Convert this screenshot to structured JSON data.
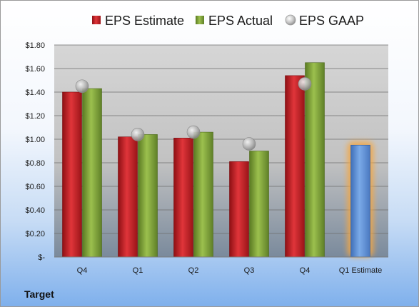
{
  "company": "Target",
  "colors": {
    "estimate": "#c81e23",
    "actual": "#7fa038",
    "gaap": "#a9a9a9",
    "next_estimate": "#5b8fd6",
    "next_estimate_glow": "#f5a742"
  },
  "chart_data": {
    "type": "bar",
    "categories": [
      "Q4",
      "Q1",
      "Q2",
      "Q3",
      "Q4",
      "Q1 Estimate"
    ],
    "y_tick_labels": [
      "$-",
      "$0.20",
      "$0.40",
      "$0.60",
      "$0.80",
      "$1.00",
      "$1.20",
      "$1.40",
      "$1.60",
      "$1.80"
    ],
    "ylim": [
      0,
      1.8
    ],
    "grid": true,
    "legend_position": "top",
    "legend": [
      "EPS Estimate",
      "EPS Actual",
      "EPS GAAP"
    ],
    "series": [
      {
        "name": "EPS Estimate",
        "type": "bar",
        "values": [
          1.4,
          1.02,
          1.01,
          0.81,
          1.54,
          null
        ]
      },
      {
        "name": "EPS Actual",
        "type": "bar",
        "values": [
          1.43,
          1.04,
          1.06,
          0.9,
          1.65,
          null
        ]
      },
      {
        "name": "EPS GAAP",
        "type": "scatter",
        "values": [
          1.45,
          1.04,
          1.06,
          0.96,
          1.47,
          null
        ]
      }
    ],
    "next_estimate": {
      "category": "Q1 Estimate",
      "value": 0.95
    }
  }
}
